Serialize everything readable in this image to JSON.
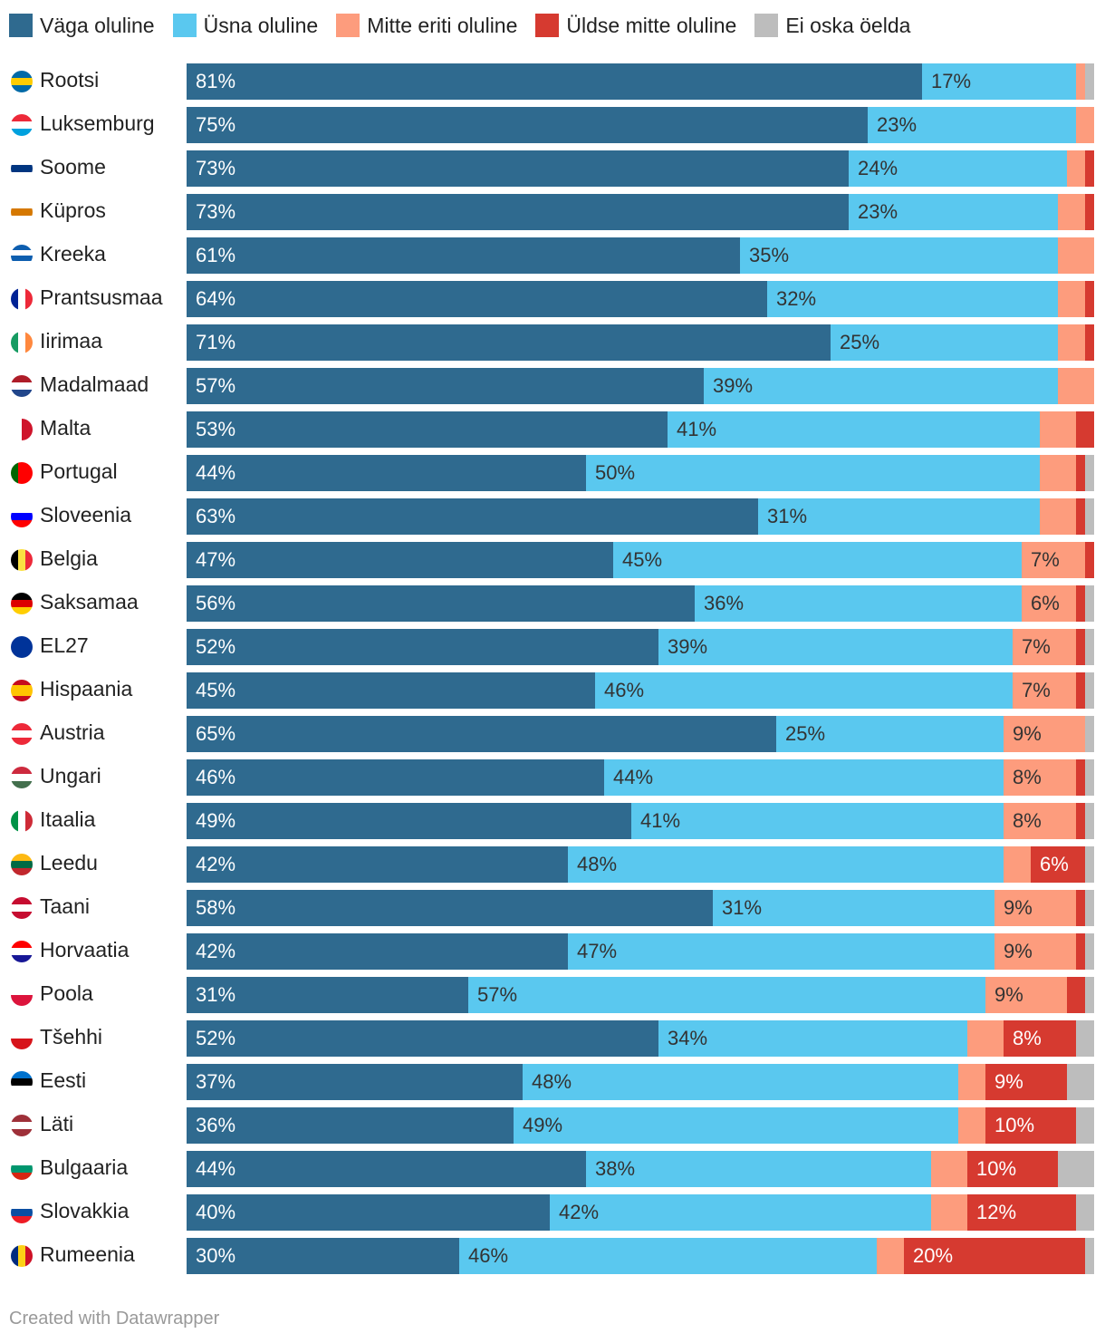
{
  "legend": [
    {
      "label": "Väga oluline",
      "color": "#2f6a8f"
    },
    {
      "label": "Üsna oluline",
      "color": "#5ac8ef"
    },
    {
      "label": "Mitte eriti oluline",
      "color": "#fd9c7d"
    },
    {
      "label": "Üldse mitte oluline",
      "color": "#d63a30"
    },
    {
      "label": "Ei oska öelda",
      "color": "#bdbdbd"
    }
  ],
  "chart_data": {
    "type": "bar",
    "orientation": "horizontal",
    "stacked": true,
    "unit": "%",
    "categories": [
      "Rootsi",
      "Luksemburg",
      "Soome",
      "Küpros",
      "Kreeka",
      "Prantsusmaa",
      "Iirimaa",
      "Madalmaad",
      "Malta",
      "Portugal",
      "Sloveenia",
      "Belgia",
      "Saksamaa",
      "EL27",
      "Hispaania",
      "Austria",
      "Ungari",
      "Itaalia",
      "Leedu",
      "Taani",
      "Horvaatia",
      "Poola",
      "Tšehhi",
      "Eesti",
      "Läti",
      "Bulgaaria",
      "Slovakkia",
      "Rumeenia"
    ],
    "series": [
      {
        "name": "Väga oluline",
        "color": "#2f6a8f",
        "text_color": "#ffffff",
        "values": [
          81,
          75,
          73,
          73,
          61,
          64,
          71,
          57,
          53,
          44,
          63,
          47,
          56,
          52,
          45,
          65,
          46,
          49,
          42,
          58,
          42,
          31,
          52,
          37,
          36,
          44,
          40,
          30
        ],
        "labels": [
          "81%",
          "75%",
          "73%",
          "73%",
          "61%",
          "64%",
          "71%",
          "57%",
          "53%",
          "44%",
          "63%",
          "47%",
          "56%",
          "52%",
          "45%",
          "65%",
          "46%",
          "49%",
          "42%",
          "58%",
          "42%",
          "31%",
          "52%",
          "37%",
          "36%",
          "44%",
          "40%",
          "30%"
        ]
      },
      {
        "name": "Üsna oluline",
        "color": "#5ac8ef",
        "text_color": "#333333",
        "values": [
          17,
          23,
          24,
          23,
          35,
          32,
          25,
          39,
          41,
          50,
          31,
          45,
          36,
          39,
          46,
          25,
          44,
          41,
          48,
          31,
          47,
          57,
          34,
          48,
          49,
          38,
          42,
          46
        ],
        "labels": [
          "17%",
          "23%",
          "24%",
          "23%",
          "35%",
          "32%",
          "25%",
          "39%",
          "41%",
          "50%",
          "31%",
          "45%",
          "36%",
          "39%",
          "46%",
          "25%",
          "44%",
          "41%",
          "48%",
          "31%",
          "47%",
          "57%",
          "34%",
          "48%",
          "49%",
          "38%",
          "42%",
          "46%"
        ]
      },
      {
        "name": "Mitte eriti oluline",
        "color": "#fd9c7d",
        "text_color": "#333333",
        "values": [
          1,
          2,
          2,
          3,
          4,
          3,
          3,
          4,
          4,
          4,
          4,
          7,
          6,
          7,
          7,
          9,
          8,
          8,
          3,
          9,
          9,
          9,
          4,
          3,
          3,
          4,
          4,
          3
        ],
        "labels": [
          "",
          "",
          "",
          "",
          "",
          "",
          "",
          "",
          "",
          "",
          "",
          "7%",
          "6%",
          "7%",
          "7%",
          "9%",
          "8%",
          "8%",
          "",
          "9%",
          "9%",
          "9%",
          "",
          "",
          "",
          "",
          "",
          ""
        ]
      },
      {
        "name": "Üldse mitte oluline",
        "color": "#d63a30",
        "text_color": "#ffffff",
        "values": [
          0,
          0,
          1,
          1,
          0,
          1,
          1,
          0,
          2,
          1,
          1,
          1,
          1,
          1,
          1,
          0,
          1,
          1,
          6,
          1,
          1,
          2,
          8,
          9,
          10,
          10,
          12,
          20
        ],
        "labels": [
          "",
          "",
          "",
          "",
          "",
          "",
          "",
          "",
          "",
          "",
          "",
          "",
          "",
          "",
          "",
          "",
          "",
          "",
          "6%",
          "",
          "",
          "",
          "8%",
          "9%",
          "10%",
          "10%",
          "12%",
          "20%"
        ]
      },
      {
        "name": "Ei oska öelda",
        "color": "#bdbdbd",
        "text_color": "#333333",
        "values": [
          1,
          0,
          0,
          0,
          0,
          0,
          0,
          0,
          0,
          1,
          1,
          0,
          1,
          1,
          1,
          1,
          1,
          1,
          1,
          1,
          1,
          1,
          2,
          3,
          2,
          4,
          2,
          1
        ],
        "labels": [
          "",
          "",
          "",
          "",
          "",
          "",
          "",
          "",
          "",
          "",
          "",
          "",
          "",
          "",
          "",
          "",
          "",
          "",
          "",
          "",
          "",
          "",
          "",
          "",
          "",
          "",
          "",
          ""
        ]
      }
    ],
    "xlim": [
      0,
      100
    ],
    "grid": false
  },
  "flags": [
    {
      "icon": "flag-sweden-icon",
      "stripes": [
        "#006aa7",
        "#fecc00",
        "#006aa7"
      ]
    },
    {
      "icon": "flag-luxembourg-icon",
      "stripes": [
        "#ed2939",
        "#ffffff",
        "#00a1de"
      ]
    },
    {
      "icon": "flag-finland-icon",
      "stripes": [
        "#ffffff",
        "#003580",
        "#ffffff"
      ]
    },
    {
      "icon": "flag-cyprus-icon",
      "stripes": [
        "#ffffff",
        "#d57800",
        "#ffffff"
      ]
    },
    {
      "icon": "flag-greece-icon",
      "stripes": [
        "#0d5eaf",
        "#ffffff",
        "#0d5eaf",
        "#ffffff"
      ]
    },
    {
      "icon": "flag-france-icon",
      "stripes": [
        "#002395",
        "#ffffff",
        "#ed2939"
      ],
      "vertical": true
    },
    {
      "icon": "flag-ireland-icon",
      "stripes": [
        "#169b62",
        "#ffffff",
        "#ff883e"
      ],
      "vertical": true
    },
    {
      "icon": "flag-netherlands-icon",
      "stripes": [
        "#ae1c28",
        "#ffffff",
        "#21468b"
      ]
    },
    {
      "icon": "flag-malta-icon",
      "stripes": [
        "#ffffff",
        "#cf142b"
      ],
      "vertical": true
    },
    {
      "icon": "flag-portugal-icon",
      "stripes": [
        "#006600",
        "#ff0000",
        "#ff0000"
      ],
      "vertical": true
    },
    {
      "icon": "flag-slovenia-icon",
      "stripes": [
        "#ffffff",
        "#0000ff",
        "#ff0000"
      ]
    },
    {
      "icon": "flag-belgium-icon",
      "stripes": [
        "#000000",
        "#fae042",
        "#ed2939"
      ],
      "vertical": true
    },
    {
      "icon": "flag-germany-icon",
      "stripes": [
        "#000000",
        "#dd0000",
        "#ffce00"
      ]
    },
    {
      "icon": "flag-eu-icon",
      "stripes": [
        "#003399"
      ]
    },
    {
      "icon": "flag-spain-icon",
      "stripes": [
        "#c60b1e",
        "#ffc400",
        "#ffc400",
        "#c60b1e"
      ]
    },
    {
      "icon": "flag-austria-icon",
      "stripes": [
        "#ed2939",
        "#ffffff",
        "#ed2939"
      ]
    },
    {
      "icon": "flag-hungary-icon",
      "stripes": [
        "#cd2a3e",
        "#ffffff",
        "#436f4d"
      ]
    },
    {
      "icon": "flag-italy-icon",
      "stripes": [
        "#009246",
        "#ffffff",
        "#ce2b37"
      ],
      "vertical": true
    },
    {
      "icon": "flag-lithuania-icon",
      "stripes": [
        "#fdb913",
        "#006a44",
        "#c1272d"
      ]
    },
    {
      "icon": "flag-denmark-icon",
      "stripes": [
        "#c60c30",
        "#ffffff",
        "#c60c30"
      ]
    },
    {
      "icon": "flag-croatia-icon",
      "stripes": [
        "#ff0000",
        "#ffffff",
        "#171796"
      ]
    },
    {
      "icon": "flag-poland-icon",
      "stripes": [
        "#ffffff",
        "#dc143c"
      ]
    },
    {
      "icon": "flag-czechia-icon",
      "stripes": [
        "#ffffff",
        "#d7141a"
      ]
    },
    {
      "icon": "flag-estonia-icon",
      "stripes": [
        "#0072ce",
        "#000000",
        "#ffffff"
      ]
    },
    {
      "icon": "flag-latvia-icon",
      "stripes": [
        "#9e3039",
        "#ffffff",
        "#9e3039"
      ]
    },
    {
      "icon": "flag-bulgaria-icon",
      "stripes": [
        "#ffffff",
        "#00966e",
        "#d62612"
      ]
    },
    {
      "icon": "flag-slovakia-icon",
      "stripes": [
        "#ffffff",
        "#0b4ea2",
        "#ee1c25"
      ]
    },
    {
      "icon": "flag-romania-icon",
      "stripes": [
        "#002b7f",
        "#fcd116",
        "#ce1126"
      ],
      "vertical": true
    }
  ],
  "footer": {
    "credit": "Created with Datawrapper"
  }
}
